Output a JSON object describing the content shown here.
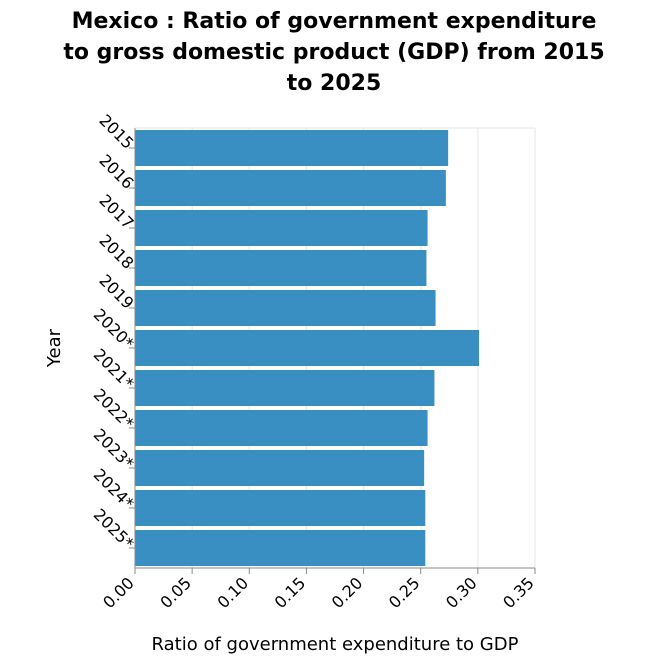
{
  "chart_data": {
    "type": "bar",
    "orientation": "horizontal",
    "title_lines": [
      "Mexico : Ratio of government expenditure",
      "to gross domestic product (GDP) from 2015",
      "to 2025"
    ],
    "xlabel": "Ratio of government expenditure to GDP",
    "ylabel": "Year",
    "categories": [
      "2015",
      "2016",
      "2017",
      "2018",
      "2019",
      "2020*",
      "2021*",
      "2022*",
      "2023*",
      "2024*",
      "2025*"
    ],
    "values": [
      0.274,
      0.272,
      0.256,
      0.255,
      0.263,
      0.301,
      0.262,
      0.256,
      0.253,
      0.254,
      0.254
    ],
    "xlim": [
      0,
      0.35
    ],
    "xticks": [
      "0.00",
      "0.05",
      "0.10",
      "0.15",
      "0.20",
      "0.25",
      "0.30",
      "0.35"
    ],
    "grid": true,
    "bar_color": "#3a8fc2"
  }
}
